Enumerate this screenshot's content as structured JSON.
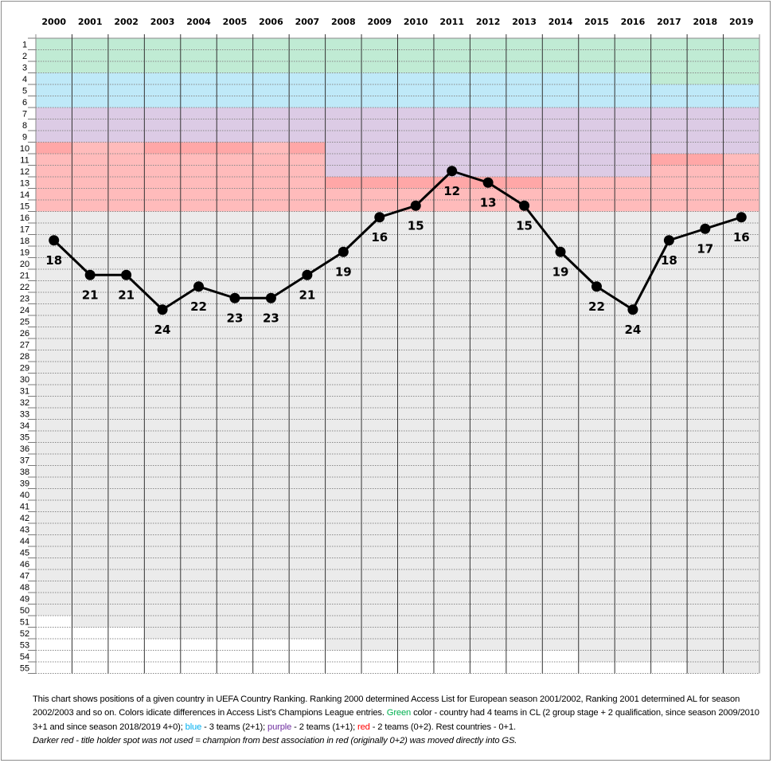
{
  "chart_data": {
    "type": "line",
    "title": "",
    "xlabel": "",
    "ylabel": "",
    "categories": [
      "2000",
      "2001",
      "2002",
      "2003",
      "2004",
      "2005",
      "2006",
      "2007",
      "2008",
      "2009",
      "2010",
      "2011",
      "2012",
      "2013",
      "2014",
      "2015",
      "2016",
      "2017",
      "2018",
      "2019"
    ],
    "values": [
      18,
      21,
      21,
      24,
      22,
      23,
      23,
      21,
      19,
      16,
      15,
      12,
      13,
      15,
      19,
      22,
      24,
      18,
      17,
      16
    ],
    "ylim": [
      1,
      55
    ],
    "y_inverted": true,
    "y_ticks": [
      1,
      2,
      3,
      4,
      5,
      6,
      7,
      8,
      9,
      10,
      11,
      12,
      13,
      14,
      15,
      16,
      17,
      18,
      19,
      20,
      21,
      22,
      23,
      24,
      25,
      26,
      27,
      28,
      29,
      30,
      31,
      32,
      33,
      34,
      35,
      36,
      37,
      38,
      39,
      40,
      41,
      42,
      43,
      44,
      45,
      46,
      47,
      48,
      49,
      50,
      51,
      52,
      53,
      54,
      55
    ],
    "grid": true,
    "bands": [
      {
        "years": [
          "2000",
          "2001",
          "2002",
          "2003",
          "2004",
          "2005",
          "2006",
          "2007"
        ],
        "green": [
          1,
          3
        ],
        "blue": [
          4,
          6
        ],
        "purple": [
          7,
          9
        ],
        "red": [
          10,
          15
        ],
        "grey_to": [
          50,
          51,
          51,
          52,
          52,
          52,
          52,
          52
        ],
        "dark_red_rank": 10,
        "dark_red_years": [
          "2000",
          "2003",
          "2004",
          "2005",
          "2007"
        ]
      },
      {
        "years": [
          "2008",
          "2009",
          "2010",
          "2011",
          "2012",
          "2013",
          "2014",
          "2015",
          "2016"
        ],
        "green": [
          1,
          3
        ],
        "blue": [
          4,
          6
        ],
        "purple": [
          7,
          12
        ],
        "red": [
          13,
          15
        ],
        "grey_to": [
          53,
          53,
          53,
          53,
          53,
          53,
          53,
          54,
          54
        ],
        "dark_red_rank": 13,
        "dark_red_years": [
          "2008",
          "2009",
          "2010",
          "2011",
          "2012",
          "2013"
        ]
      },
      {
        "years": [
          "2017",
          "2018",
          "2019"
        ],
        "green": [
          1,
          4
        ],
        "blue": [
          5,
          6
        ],
        "purple": [
          7,
          10
        ],
        "red": [
          11,
          15
        ],
        "grey_to": [
          54,
          55,
          55
        ],
        "dark_red_rank": 11,
        "dark_red_years": [
          "2017",
          "2018"
        ]
      }
    ],
    "colors": {
      "green": "#c0ebd4",
      "blue": "#bfe9f8",
      "purple": "#dccbe5",
      "red": "#ffbbbb",
      "dark_red": "#ffa7a7",
      "grey": "#ebebeb",
      "line": "#000000"
    }
  },
  "caption": {
    "p1": "This chart shows positions of a given country in UEFA Country Ranking. Ranking 2000 determined Access List for European season 2001/2002, Ranking 2001 determined AL for season 2002/2003 and so on.  Colors idicate differences in Access List's Champions League entries. ",
    "green_word": "Green",
    "p2": " color - country had 4 teams in CL (2 group stage + 2 qualification, since season 2009/2010 3+1 and since season 2018/2019  4+0); ",
    "blue_word": "blue",
    "p3": " - 3 teams  (2+1); ",
    "purple_word": "purple",
    "p4": " - 2 teams (1+1); ",
    "red_word": "red",
    "p5": " - 2 teams (0+2). Rest countries - 0+1.",
    "note": "Darker red - title holder spot was not used = champion from best association in red (originally 0+2) was moved directly  into GS.",
    "word_colors": {
      "green": "#00b050",
      "blue": "#00b0f0",
      "purple": "#7030a0",
      "red": "#ff0000"
    }
  }
}
